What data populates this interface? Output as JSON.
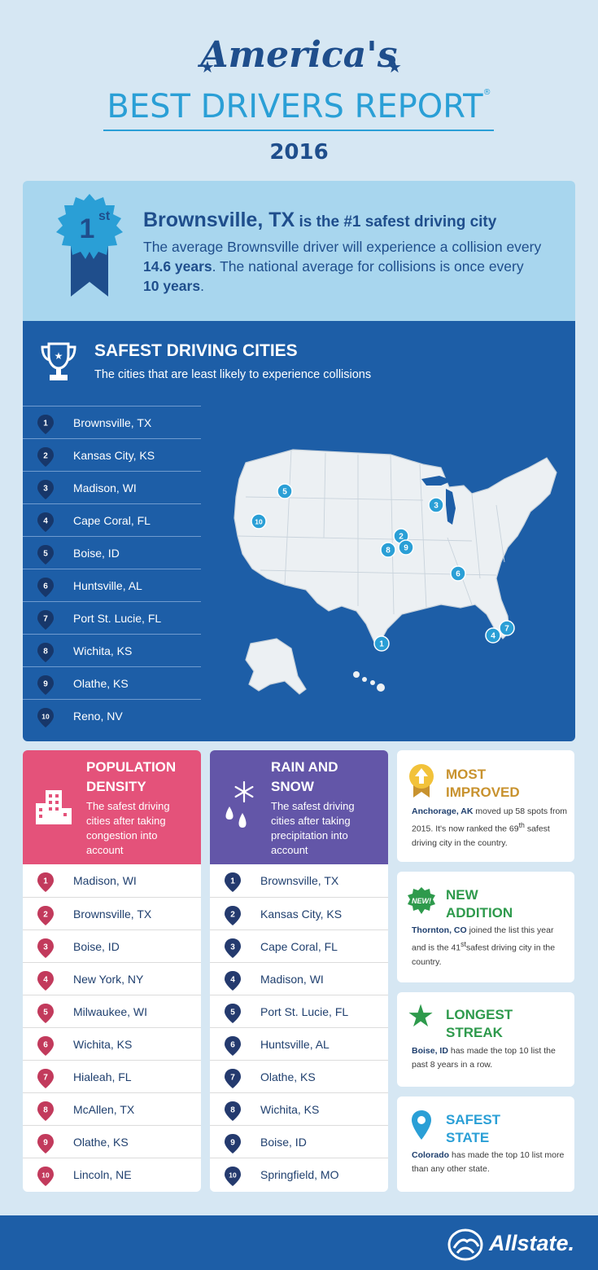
{
  "header": {
    "script_title": "America's",
    "main_title": "BEST DRIVERS REPORT",
    "registered": "®",
    "year": "2016"
  },
  "first_place": {
    "badge_text": "1",
    "badge_sup": "st",
    "city": "Brownsville, TX",
    "headline_rest": " is the #1 safest driving city",
    "body_pre": "The average Brownsville driver will experience a collision every ",
    "years_city": "14.6 years",
    "body_mid": ". The national average for collisions is once every ",
    "years_national": "10 years",
    "body_end": "."
  },
  "safest_cities": {
    "title": "SAFEST DRIVING CITIES",
    "subtitle": "The cities that are least likely to experience collisions",
    "items": [
      {
        "rank": "1",
        "city": "Brownsville, TX"
      },
      {
        "rank": "2",
        "city": "Kansas City, KS"
      },
      {
        "rank": "3",
        "city": "Madison, WI"
      },
      {
        "rank": "4",
        "city": "Cape Coral, FL"
      },
      {
        "rank": "5",
        "city": "Boise, ID"
      },
      {
        "rank": "6",
        "city": "Huntsville, AL"
      },
      {
        "rank": "7",
        "city": "Port St. Lucie, FL"
      },
      {
        "rank": "8",
        "city": "Wichita, KS"
      },
      {
        "rank": "9",
        "city": "Olathe, KS"
      },
      {
        "rank": "10",
        "city": "Reno, NV"
      }
    ]
  },
  "map_markers": [
    "5",
    "10",
    "3",
    "2",
    "8",
    "9",
    "6",
    "4",
    "7",
    "1"
  ],
  "population_density": {
    "title_line1": "POPULATION",
    "title_line2": "DENSITY",
    "subtitle": "The safest driving cities after taking congestion into account",
    "items": [
      {
        "rank": "1",
        "city": "Madison, WI"
      },
      {
        "rank": "2",
        "city": "Brownsville, TX"
      },
      {
        "rank": "3",
        "city": "Boise, ID"
      },
      {
        "rank": "4",
        "city": "New York, NY"
      },
      {
        "rank": "5",
        "city": "Milwaukee, WI"
      },
      {
        "rank": "6",
        "city": "Wichita, KS"
      },
      {
        "rank": "7",
        "city": "Hialeah, FL"
      },
      {
        "rank": "8",
        "city": "McAllen, TX"
      },
      {
        "rank": "9",
        "city": "Olathe, KS"
      },
      {
        "rank": "10",
        "city": "Lincoln, NE"
      }
    ]
  },
  "rain_snow": {
    "title_line1": "RAIN AND",
    "title_line2": "SNOW",
    "subtitle": "The safest driving cities after taking precipitation into account",
    "items": [
      {
        "rank": "1",
        "city": "Brownsville, TX"
      },
      {
        "rank": "2",
        "city": "Kansas City, KS"
      },
      {
        "rank": "3",
        "city": "Cape Coral, FL"
      },
      {
        "rank": "4",
        "city": "Madison, WI"
      },
      {
        "rank": "5",
        "city": "Port St. Lucie, FL"
      },
      {
        "rank": "6",
        "city": "Huntsville, AL"
      },
      {
        "rank": "7",
        "city": "Olathe, KS"
      },
      {
        "rank": "8",
        "city": "Wichita, KS"
      },
      {
        "rank": "9",
        "city": "Boise, ID"
      },
      {
        "rank": "10",
        "city": "Springfield, MO"
      }
    ]
  },
  "most_improved": {
    "title_line1": "MOST",
    "title_line2": "IMPROVED",
    "city": "Anchorage, AK",
    "text_a": " moved up 58 spots from 2015. It's now ranked the 69",
    "sup": "th",
    "text_b": " safest driving city in the country."
  },
  "new_addition": {
    "badge": "NEW!",
    "title_line1": "NEW",
    "title_line2": "ADDITION",
    "city": "Thornton, CO",
    "text_a": " joined the list this year and is the 41",
    "sup": "st",
    "text_b": "safest driving city in the country."
  },
  "longest_streak": {
    "title_line1": "LONGEST",
    "title_line2": "STREAK",
    "city": "Boise, ID",
    "text": " has made the top 10 list the past 8 years in a row."
  },
  "safest_state": {
    "title_line1": "SAFEST",
    "title_line2": "STATE",
    "state": "Colorado",
    "text": " has made the top 10 list more than any other state."
  },
  "footer": {
    "brand": "Allstate",
    "mark": "."
  },
  "colors": {
    "navy": "#1f4e8c",
    "sky": "#2a9fd6",
    "panel_blue": "#1d5ea7",
    "pink": "#e4527a",
    "pin_pink": "#c23a5c",
    "purple": "#6356a8",
    "pin_navy": "#243a6e",
    "gold": "#c8922e",
    "green": "#2e9a4c"
  }
}
